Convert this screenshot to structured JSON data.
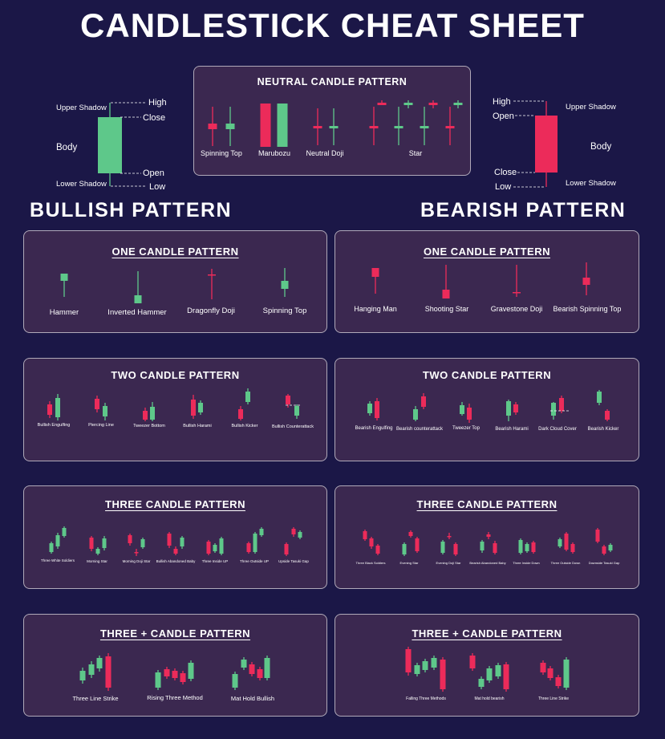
{
  "title": "CANDLESTICK CHEAT SHEET",
  "colors": {
    "bull": "#5ec88a",
    "bear": "#ec2b5a",
    "panel": "#3b2850",
    "bg": "#1b1747"
  },
  "anatomy_bull": {
    "upper_shadow": "Upper Shadow",
    "high": "High",
    "close": "Close",
    "body": "Body",
    "open": "Open",
    "lower_shadow": "Lower Shadow",
    "low": "Low"
  },
  "anatomy_bear": {
    "high": "High",
    "upper_shadow": "Upper Shadow",
    "open": "Open",
    "body": "Body",
    "close": "Close",
    "lower_shadow": "Lower Shadow",
    "low": "Low"
  },
  "neutral": {
    "title": "NEUTRAL CANDLE PATTERN",
    "labels": [
      "Spinning Top",
      "Marubozu",
      "Neutral Doji",
      "Star"
    ]
  },
  "bullish_heading": "BULLISH PATTERN",
  "bearish_heading": "BEARISH PATTERN",
  "bull_one": {
    "title": "ONE CANDLE PATTERN",
    "labels": [
      "Hammer",
      "Inverted Hammer",
      "Dragonfly Doji",
      "Spinning Top"
    ]
  },
  "bear_one": {
    "title": "ONE CANDLE PATTERN",
    "labels": [
      "Hanging Man",
      "Shooting Star",
      "Gravestone Doji",
      "Bearish Spinning Top"
    ]
  },
  "bull_two": {
    "title": "TWO CANDLE PATTERN",
    "labels": [
      "Bullish Engulfing",
      "Piercing Line",
      "Tweezer Bottom",
      "Bullish Harami",
      "Bullish Kicker",
      "Bullish Counterattack"
    ]
  },
  "bear_two": {
    "title": "TWO CANDLE PATTERN",
    "labels": [
      "Bearish Engulfing",
      "Bearish counterattack",
      "Tweezer Top",
      "Bearish Harami",
      "Dark Cloud Cover",
      "Bearish Kicker"
    ]
  },
  "bull_three": {
    "title": "THREE  CANDLE PATTERN",
    "labels": [
      "Three White Soldiers",
      "Morning Star",
      "Morning Doji Star",
      "Bullish Abandoned Baby",
      "Three Inside UP",
      "Three Outside UP",
      "Upside Tasuki Gap"
    ]
  },
  "bear_three": {
    "title": "THREE  CANDLE PATTERN",
    "labels": [
      "Three Black Soldiers",
      "Evening Star",
      "Evening Doji Star",
      "Bearish Abandoned Baby",
      "Three Inside Down",
      "Three Outside Down",
      "Downside Tasuki Gap"
    ]
  },
  "bull_threeplus": {
    "title": "THREE + CANDLE PATTERN",
    "labels": [
      "Three Line Strike",
      "Rising Three Method",
      "Mat Hold Bullish"
    ]
  },
  "bear_threeplus": {
    "title": "THREE + CANDLE PATTERN",
    "labels": [
      "Falling Three Methods",
      "Mat hold bearish",
      "Three Line Strike"
    ]
  }
}
